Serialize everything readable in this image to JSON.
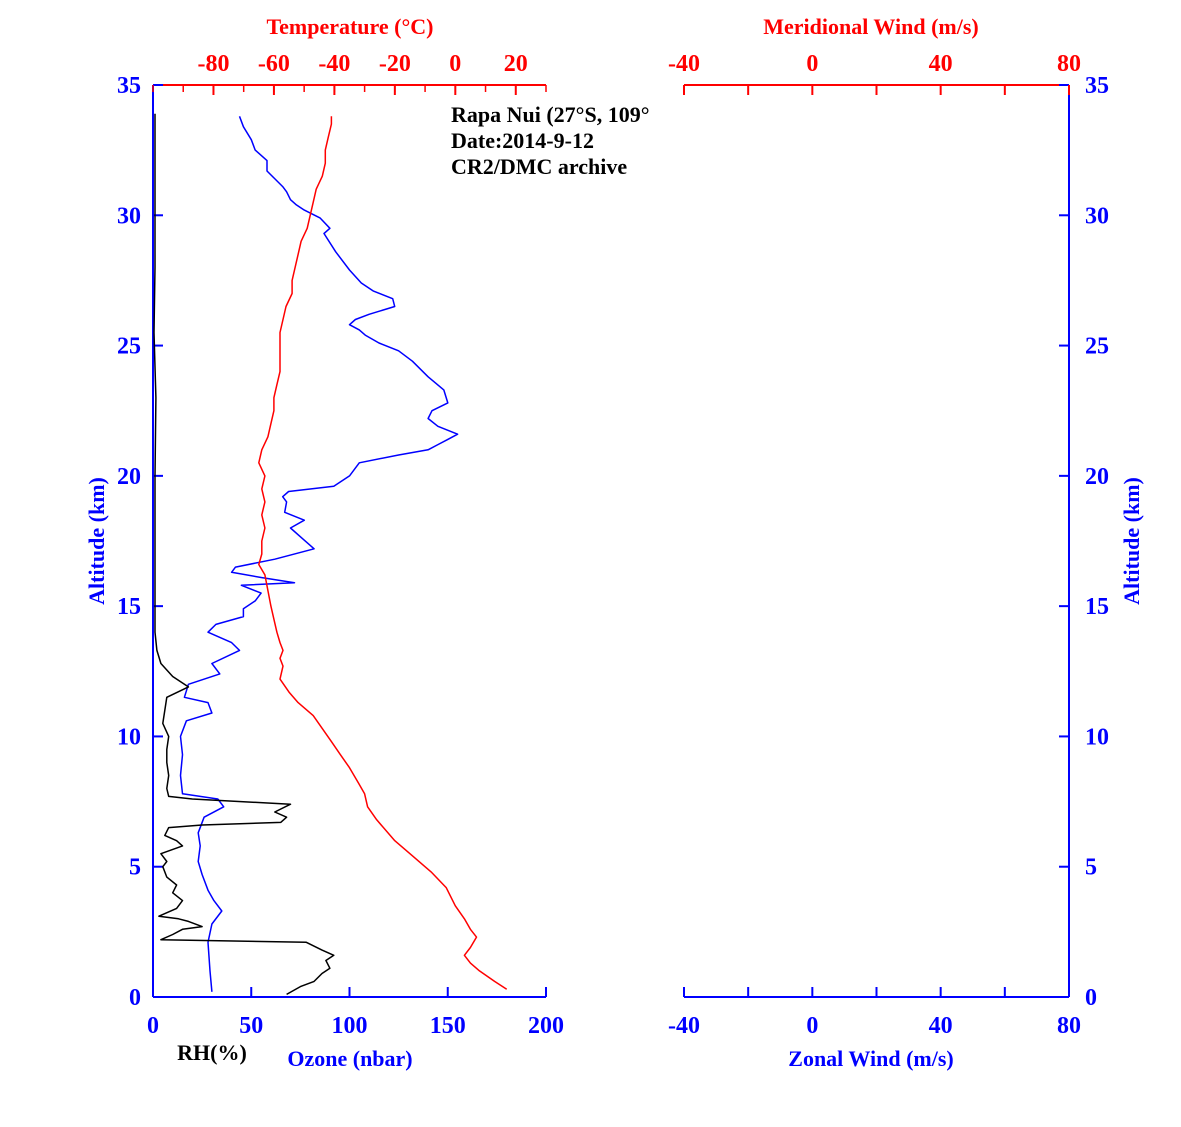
{
  "chart_data": [
    {
      "type": "line",
      "panel": "left",
      "annotations": [
        "Rapa Nui (27°S, 109°",
        "Date:2014-9-12",
        "CR2/DMC archive"
      ],
      "ylabel": "Altitude (km)",
      "y_label_right": "Altitude (km)",
      "ylim": [
        0,
        35
      ],
      "y_ticks": [
        "0",
        "5",
        "10",
        "15",
        "20",
        "25",
        "30",
        "35"
      ],
      "x_bottom": {
        "label": "Ozone (nbar)",
        "secondary_label": "RH(%)",
        "range": [
          0,
          200
        ],
        "ticks": [
          "0",
          "50",
          "100",
          "150",
          "200"
        ]
      },
      "x_top": {
        "label": "Temperature (°C)",
        "range": [
          -100,
          30
        ],
        "ticks": [
          "-80",
          "-60",
          "-40",
          "-20",
          "0",
          "20"
        ]
      },
      "colors": {
        "temperature": "#ff0000",
        "ozone": "#0000ff",
        "rh": "#000000",
        "axis": "#0000ff"
      },
      "series": [
        {
          "name": "Ozone (nbar)",
          "axis": "bottom",
          "points": [
            [
              30,
              0.2
            ],
            [
              29,
              1.0
            ],
            [
              28,
              2.1
            ],
            [
              30,
              2.8
            ],
            [
              35,
              3.3
            ],
            [
              31,
              3.7
            ],
            [
              28,
              4.1
            ],
            [
              25,
              4.7
            ],
            [
              23,
              5.2
            ],
            [
              24,
              5.8
            ],
            [
              23,
              6.3
            ],
            [
              26,
              6.9
            ],
            [
              36,
              7.3
            ],
            [
              33,
              7.6
            ],
            [
              15,
              7.8
            ],
            [
              14,
              8.5
            ],
            [
              15,
              9.3
            ],
            [
              14,
              10.0
            ],
            [
              17,
              10.6
            ],
            [
              30,
              10.9
            ],
            [
              28,
              11.3
            ],
            [
              16,
              11.5
            ],
            [
              18,
              12.0
            ],
            [
              34,
              12.4
            ],
            [
              30,
              12.8
            ],
            [
              44,
              13.3
            ],
            [
              40,
              13.6
            ],
            [
              28,
              14.0
            ],
            [
              32,
              14.3
            ],
            [
              46,
              14.6
            ],
            [
              46,
              14.9
            ],
            [
              52,
              15.2
            ],
            [
              55,
              15.5
            ],
            [
              45,
              15.8
            ],
            [
              72,
              15.9
            ],
            [
              55,
              16.1
            ],
            [
              40,
              16.3
            ],
            [
              42,
              16.5
            ],
            [
              62,
              16.8
            ],
            [
              82,
              17.2
            ],
            [
              76,
              17.6
            ],
            [
              70,
              18.0
            ],
            [
              77,
              18.3
            ],
            [
              67,
              18.6
            ],
            [
              68,
              19.0
            ],
            [
              66,
              19.2
            ],
            [
              69,
              19.4
            ],
            [
              92,
              19.6
            ],
            [
              100,
              20.0
            ],
            [
              105,
              20.5
            ],
            [
              125,
              20.8
            ],
            [
              140,
              21.0
            ],
            [
              145,
              21.2
            ],
            [
              150,
              21.4
            ],
            [
              155,
              21.6
            ],
            [
              145,
              21.9
            ],
            [
              140,
              22.2
            ],
            [
              142,
              22.5
            ],
            [
              150,
              22.8
            ],
            [
              148,
              23.3
            ],
            [
              140,
              23.8
            ],
            [
              132,
              24.4
            ],
            [
              125,
              24.8
            ],
            [
              115,
              25.1
            ],
            [
              108,
              25.4
            ],
            [
              105,
              25.6
            ],
            [
              100,
              25.8
            ],
            [
              103,
              26.0
            ],
            [
              110,
              26.2
            ],
            [
              123,
              26.5
            ],
            [
              122,
              26.8
            ],
            [
              112,
              27.1
            ],
            [
              106,
              27.4
            ],
            [
              100,
              27.9
            ],
            [
              93,
              28.6
            ],
            [
              87,
              29.3
            ],
            [
              90,
              29.5
            ],
            [
              85,
              29.9
            ],
            [
              77,
              30.2
            ],
            [
              73,
              30.4
            ],
            [
              70,
              30.6
            ],
            [
              68,
              30.9
            ],
            [
              66,
              31.1
            ],
            [
              58,
              31.7
            ],
            [
              58,
              32.1
            ],
            [
              52,
              32.5
            ],
            [
              50,
              32.9
            ],
            [
              46,
              33.4
            ],
            [
              44,
              33.8
            ]
          ]
        },
        {
          "name": "RH(%)",
          "axis": "bottom",
          "points": [
            [
              68,
              0.1
            ],
            [
              75,
              0.4
            ],
            [
              82,
              0.6
            ],
            [
              86,
              0.9
            ],
            [
              90,
              1.1
            ],
            [
              88,
              1.4
            ],
            [
              92,
              1.6
            ],
            [
              86,
              1.8
            ],
            [
              78,
              2.1
            ],
            [
              4,
              2.2
            ],
            [
              10,
              2.4
            ],
            [
              15,
              2.6
            ],
            [
              25,
              2.7
            ],
            [
              18,
              2.9
            ],
            [
              13,
              3.0
            ],
            [
              3,
              3.1
            ],
            [
              12,
              3.4
            ],
            [
              15,
              3.7
            ],
            [
              10,
              4.0
            ],
            [
              12,
              4.3
            ],
            [
              7,
              4.6
            ],
            [
              5,
              5.0
            ],
            [
              7,
              5.2
            ],
            [
              4,
              5.5
            ],
            [
              15,
              5.8
            ],
            [
              12,
              6.0
            ],
            [
              6,
              6.2
            ],
            [
              8,
              6.5
            ],
            [
              25,
              6.6
            ],
            [
              65,
              6.7
            ],
            [
              68,
              6.9
            ],
            [
              62,
              7.1
            ],
            [
              70,
              7.4
            ],
            [
              20,
              7.6
            ],
            [
              8,
              7.7
            ],
            [
              7,
              8.0
            ],
            [
              8,
              8.5
            ],
            [
              7,
              9.0
            ],
            [
              7,
              9.5
            ],
            [
              8,
              10.0
            ],
            [
              5,
              10.5
            ],
            [
              6,
              11.0
            ],
            [
              7,
              11.5
            ],
            [
              18,
              11.9
            ],
            [
              10,
              12.3
            ],
            [
              4,
              12.8
            ],
            [
              2,
              13.3
            ],
            [
              1,
              14.0
            ],
            [
              1,
              16
            ],
            [
              1,
              20
            ],
            [
              1.5,
              23
            ],
            [
              0.5,
              25.5
            ],
            [
              1,
              28
            ],
            [
              1,
              31
            ],
            [
              1,
              33.9
            ]
          ]
        },
        {
          "name": "Temperature (°C)",
          "axis": "top",
          "points": [
            [
              17,
              0.3
            ],
            [
              13,
              0.6
            ],
            [
              8,
              1.0
            ],
            [
              5,
              1.3
            ],
            [
              3,
              1.6
            ],
            [
              5,
              1.9
            ],
            [
              7,
              2.3
            ],
            [
              5,
              2.6
            ],
            [
              3,
              3.0
            ],
            [
              0,
              3.5
            ],
            [
              -3,
              4.2
            ],
            [
              -8,
              4.8
            ],
            [
              -14,
              5.4
            ],
            [
              -20,
              6.0
            ],
            [
              -26,
              6.8
            ],
            [
              -29,
              7.3
            ],
            [
              -30,
              7.8
            ],
            [
              -32,
              8.2
            ],
            [
              -35,
              8.8
            ],
            [
              -38,
              9.3
            ],
            [
              -41,
              9.8
            ],
            [
              -44,
              10.3
            ],
            [
              -47,
              10.8
            ],
            [
              -52,
              11.3
            ],
            [
              -55,
              11.7
            ],
            [
              -58,
              12.2
            ],
            [
              -57,
              12.7
            ],
            [
              -58,
              13.0
            ],
            [
              -57,
              13.3
            ],
            [
              -58,
              13.6
            ],
            [
              -59,
              14.0
            ],
            [
              -60,
              14.5
            ],
            [
              -61,
              15.0
            ],
            [
              -62,
              15.6
            ],
            [
              -63,
              16.2
            ],
            [
              -65,
              16.6
            ],
            [
              -64,
              17.0
            ],
            [
              -64,
              17.5
            ],
            [
              -63,
              18.0
            ],
            [
              -64,
              18.5
            ],
            [
              -63,
              19.0
            ],
            [
              -64,
              19.5
            ],
            [
              -63,
              20.0
            ],
            [
              -65,
              20.5
            ],
            [
              -64,
              21.0
            ],
            [
              -62,
              21.5
            ],
            [
              -61,
              22.0
            ],
            [
              -60,
              22.5
            ],
            [
              -60,
              23.0
            ],
            [
              -59,
              23.5
            ],
            [
              -58,
              24.0
            ],
            [
              -58,
              24.5
            ],
            [
              -58,
              25.0
            ],
            [
              -58,
              25.5
            ],
            [
              -57,
              26.0
            ],
            [
              -56,
              26.5
            ],
            [
              -54,
              27.0
            ],
            [
              -54,
              27.5
            ],
            [
              -53,
              28.0
            ],
            [
              -52,
              28.5
            ],
            [
              -51,
              29.0
            ],
            [
              -49,
              29.5
            ],
            [
              -48,
              30.0
            ],
            [
              -47,
              30.5
            ],
            [
              -46,
              31.0
            ],
            [
              -44,
              31.5
            ],
            [
              -43,
              32.0
            ],
            [
              -43,
              32.5
            ],
            [
              -42,
              33.0
            ],
            [
              -41,
              33.5
            ],
            [
              -41,
              33.8
            ]
          ]
        }
      ]
    },
    {
      "type": "line",
      "panel": "right",
      "ylim": [
        0,
        35
      ],
      "y_ticks": [
        "0",
        "5",
        "10",
        "15",
        "20",
        "25",
        "30",
        "35"
      ],
      "x_bottom": {
        "label": "Zonal Wind (m/s)",
        "range": [
          -40,
          80
        ],
        "ticks": [
          "-40",
          "0",
          "40",
          "80"
        ]
      },
      "x_top": {
        "label": "Meridional Wind (m/s)",
        "range": [
          -40,
          80
        ],
        "ticks": [
          "-40",
          "0",
          "40",
          "80"
        ]
      },
      "series": []
    }
  ]
}
